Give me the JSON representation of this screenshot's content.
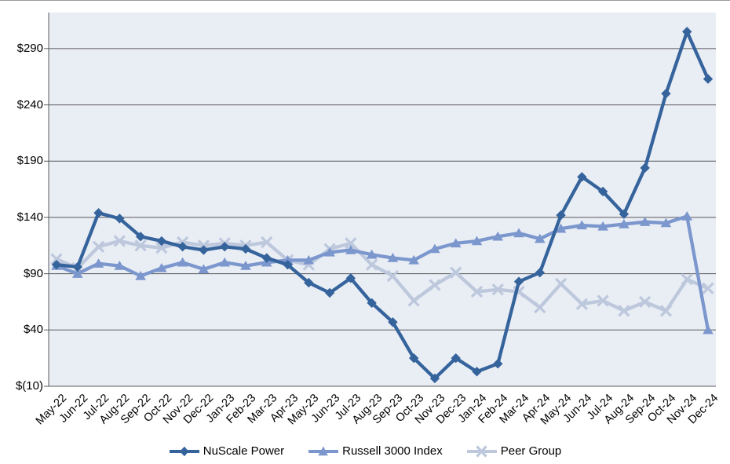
{
  "chart_data": {
    "type": "line",
    "title": "",
    "x_categories": [
      "May-22",
      "Jun-22",
      "Jul-22",
      "Aug-22",
      "Sep-22",
      "Oct-22",
      "Nov-22",
      "Dec-22",
      "Jan-23",
      "Feb-23",
      "Mar-23",
      "Apr-23",
      "May-23",
      "Jun-23",
      "Jul-23",
      "Aug-23",
      "Sep-23",
      "Oct-23",
      "Nov-23",
      "Dec-23",
      "Jan-24",
      "Feb-24",
      "Mar-24",
      "Apr-24",
      "May-24",
      "Jun-24",
      "Jul-24",
      "Aug-24",
      "Sep-24",
      "Oct-24",
      "Nov-24",
      "Dec-24"
    ],
    "y_axis": {
      "min": -10,
      "max": 322,
      "ticks": [
        {
          "value": 290,
          "label": "$290"
        },
        {
          "value": 240,
          "label": "$240"
        },
        {
          "value": 190,
          "label": "$190"
        },
        {
          "value": 140,
          "label": "$140"
        },
        {
          "value": 90,
          "label": "$90"
        },
        {
          "value": 40,
          "label": "$40"
        },
        {
          "value": -10,
          "label": "$(10)"
        }
      ]
    },
    "series": [
      {
        "name": "NuScale Power",
        "marker": "diamond",
        "color": "#35639c",
        "values": [
          98,
          96,
          144,
          139,
          123,
          119,
          114,
          111,
          114,
          112,
          104,
          98,
          82,
          73,
          86,
          64,
          47,
          15,
          -3,
          15,
          3,
          10,
          83,
          91,
          142,
          176,
          163,
          143,
          184,
          250,
          305,
          263
        ]
      },
      {
        "name": "Russell 3000 Index",
        "marker": "triangle",
        "color": "#7b97cd",
        "values": [
          97,
          90,
          99,
          97,
          88,
          95,
          100,
          94,
          100,
          97,
          100,
          102,
          102,
          109,
          111,
          107,
          104,
          102,
          112,
          117,
          119,
          123,
          126,
          121,
          130,
          133,
          132,
          134,
          136,
          135,
          141,
          40
        ]
      },
      {
        "name": "Peer Group",
        "marker": "x",
        "color": "#bdc8dd",
        "values": [
          103,
          95,
          114,
          119,
          115,
          113,
          118,
          115,
          117,
          115,
          118,
          102,
          98,
          112,
          117,
          98,
          88,
          66,
          80,
          91,
          74,
          76,
          74,
          60,
          81,
          63,
          66,
          57,
          65,
          57,
          85,
          77
        ]
      }
    ],
    "plot_background": "#e9edf4",
    "gridline_color": "#595a5c",
    "axis_line_color": "#595a5c",
    "legend_position": "bottom",
    "grid": true
  }
}
